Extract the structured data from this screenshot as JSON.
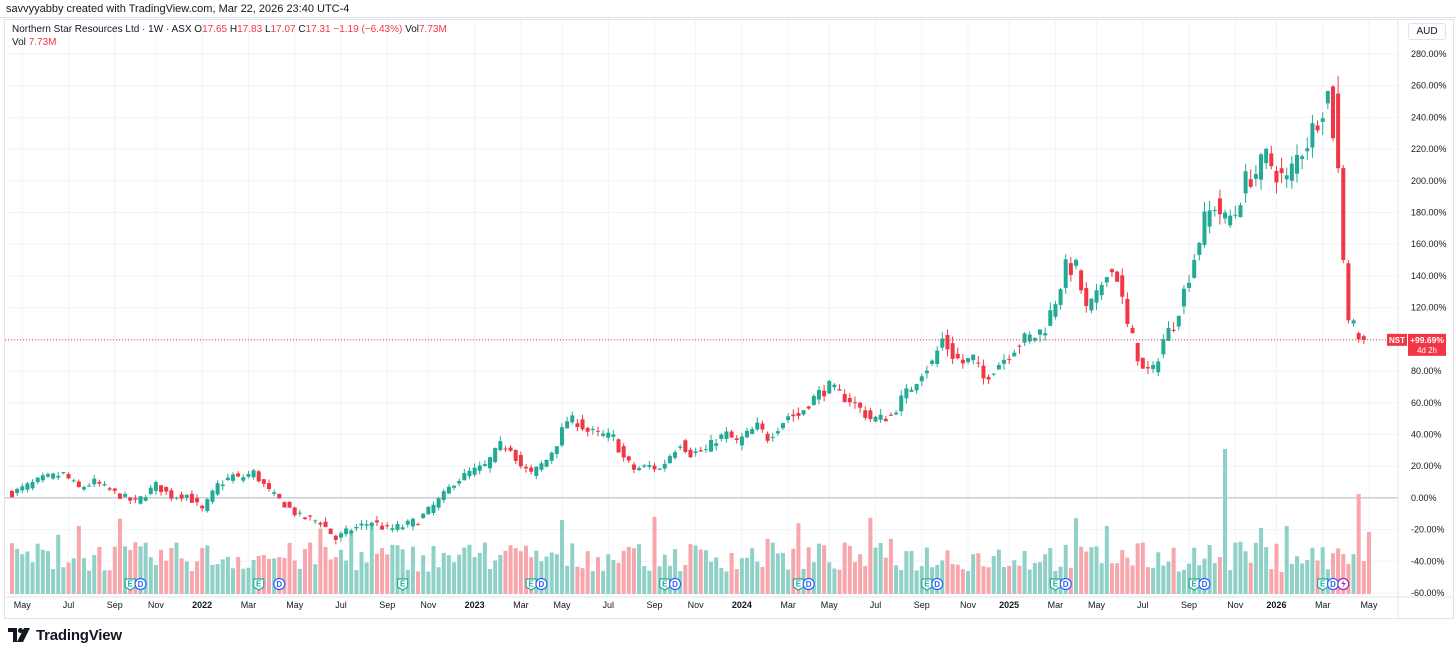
{
  "header": {
    "created_by": "savvyyabby created with TradingView.com, Mar 22, 2026 23:40 UTC-4"
  },
  "legend": {
    "symbol": "Northern Star Resources Ltd · 1W · ASX",
    "o_label": "O",
    "o": "17.65",
    "h_label": "H",
    "h": "17.83",
    "l_label": "L",
    "l": "17.07",
    "c_label": "C",
    "c": "17.31",
    "change": "−1.19 (−6.43%)",
    "vol_label": "Vol",
    "vol": "7.73M",
    "vol_row_label": "Vol",
    "vol_row": "7.73M"
  },
  "currency": "AUD",
  "price_tag": {
    "ticker": "NST",
    "value": "+99.69%",
    "countdown": "4d 2h"
  },
  "colors": {
    "up": "#22ab94",
    "down": "#f23645",
    "up_vol": "#8fd1c6",
    "down_vol": "#f7a6ac",
    "grid": "#f0f3fa",
    "zero": "#b2b5be"
  },
  "brand": "TradingView",
  "chart_data": {
    "type": "candlestick",
    "title": "Northern Star Resources Ltd · 1W · ASX",
    "yaxis_unit": "percent change",
    "ylim": [
      -60,
      280
    ],
    "y_ticks": [
      "280.00%",
      "260.00%",
      "240.00%",
      "220.00%",
      "200.00%",
      "180.00%",
      "160.00%",
      "140.00%",
      "120.00%",
      "100.00%",
      "80.00%",
      "60.00%",
      "40.00%",
      "20.00%",
      "0.00%",
      "-20.00%",
      "-40.00%",
      "-60.00%"
    ],
    "x_ticks": [
      "May",
      "Jul",
      "Sep",
      "Nov",
      "2022",
      "Mar",
      "May",
      "Jul",
      "Sep",
      "Nov",
      "2023",
      "Mar",
      "May",
      "Jul",
      "Sep",
      "Nov",
      "2024",
      "Mar",
      "May",
      "Jul",
      "Sep",
      "Nov",
      "2025",
      "Mar",
      "May",
      "Jul",
      "Sep",
      "Nov",
      "2026",
      "Mar",
      "May"
    ],
    "x_tick_index": [
      2,
      11,
      20,
      28,
      37,
      46,
      55,
      64,
      73,
      81,
      90,
      99,
      107,
      116,
      125,
      133,
      142,
      151,
      159,
      168,
      177,
      186,
      194,
      203,
      211,
      220,
      229,
      238,
      246,
      255,
      264
    ],
    "bold_ticks": [
      "2022",
      "2023",
      "2024",
      "2025",
      "2026"
    ],
    "last_value": 99.69,
    "close_path": [
      [
        0,
        3
      ],
      [
        6,
        12
      ],
      [
        10,
        15
      ],
      [
        13,
        6
      ],
      [
        16,
        10
      ],
      [
        20,
        3
      ],
      [
        24,
        -3
      ],
      [
        28,
        8
      ],
      [
        31,
        1
      ],
      [
        34,
        2
      ],
      [
        37,
        -8
      ],
      [
        40,
        8
      ],
      [
        43,
        14
      ],
      [
        44,
        12
      ],
      [
        47,
        16
      ],
      [
        50,
        4
      ],
      [
        53,
        -4
      ],
      [
        56,
        -12
      ],
      [
        60,
        -15
      ],
      [
        63,
        -26
      ],
      [
        66,
        -20
      ],
      [
        70,
        -15
      ],
      [
        73,
        -20
      ],
      [
        76,
        -18
      ],
      [
        79,
        -14
      ],
      [
        82,
        -5
      ],
      [
        84,
        2
      ],
      [
        86,
        10
      ],
      [
        89,
        16
      ],
      [
        92,
        20
      ],
      [
        95,
        33
      ],
      [
        97,
        32
      ],
      [
        99,
        20
      ],
      [
        101,
        15
      ],
      [
        104,
        24
      ],
      [
        106,
        35
      ],
      [
        108,
        49
      ],
      [
        110,
        48
      ],
      [
        112,
        42
      ],
      [
        114,
        40
      ],
      [
        117,
        38
      ],
      [
        119,
        25
      ],
      [
        121,
        18
      ],
      [
        124,
        20
      ],
      [
        126,
        18
      ],
      [
        128,
        27
      ],
      [
        130,
        35
      ],
      [
        132,
        28
      ],
      [
        135,
        30
      ],
      [
        137,
        37
      ],
      [
        139,
        40
      ],
      [
        141,
        35
      ],
      [
        143,
        40
      ],
      [
        145,
        45
      ],
      [
        147,
        38
      ],
      [
        149,
        45
      ],
      [
        151,
        52
      ],
      [
        153,
        52
      ],
      [
        155,
        60
      ],
      [
        157,
        66
      ],
      [
        159,
        70
      ],
      [
        161,
        65
      ],
      [
        163,
        62
      ],
      [
        165,
        56
      ],
      [
        167,
        50
      ],
      [
        169,
        50
      ],
      [
        171,
        52
      ],
      [
        173,
        62
      ],
      [
        175,
        70
      ],
      [
        177,
        80
      ],
      [
        179,
        85
      ],
      [
        181,
        100
      ],
      [
        183,
        90
      ],
      [
        185,
        85
      ],
      [
        187,
        88
      ],
      [
        189,
        75
      ],
      [
        191,
        82
      ],
      [
        193,
        88
      ],
      [
        195,
        95
      ],
      [
        197,
        100
      ],
      [
        199,
        102
      ],
      [
        201,
        108
      ],
      [
        203,
        125
      ],
      [
        205,
        145
      ],
      [
        207,
        145
      ],
      [
        209,
        118
      ],
      [
        211,
        126
      ],
      [
        213,
        145
      ],
      [
        215,
        140
      ],
      [
        217,
        108
      ],
      [
        218,
        100
      ],
      [
        220,
        80
      ],
      [
        222,
        80
      ],
      [
        224,
        100
      ],
      [
        226,
        110
      ],
      [
        228,
        130
      ],
      [
        230,
        152
      ],
      [
        232,
        175
      ],
      [
        234,
        185
      ],
      [
        236,
        175
      ],
      [
        238,
        180
      ],
      [
        240,
        200
      ],
      [
        242,
        205
      ],
      [
        244,
        215
      ],
      [
        246,
        205
      ],
      [
        248,
        200
      ],
      [
        250,
        215
      ],
      [
        252,
        225
      ],
      [
        254,
        240
      ],
      [
        256,
        255
      ],
      [
        258,
        208
      ],
      [
        259,
        150
      ],
      [
        260,
        118
      ],
      [
        261,
        110
      ],
      [
        262,
        103
      ],
      [
        264,
        100
      ]
    ],
    "earnings_markers": [
      {
        "index": 23,
        "type": "E"
      },
      {
        "index": 25,
        "type": "D"
      },
      {
        "index": 48,
        "type": "E"
      },
      {
        "index": 52,
        "type": "D"
      },
      {
        "index": 76,
        "type": "E"
      },
      {
        "index": 101,
        "type": "E"
      },
      {
        "index": 103,
        "type": "D"
      },
      {
        "index": 127,
        "type": "E"
      },
      {
        "index": 129,
        "type": "D"
      },
      {
        "index": 153,
        "type": "E"
      },
      {
        "index": 155,
        "type": "D"
      },
      {
        "index": 178,
        "type": "E"
      },
      {
        "index": 180,
        "type": "D"
      },
      {
        "index": 203,
        "type": "E"
      },
      {
        "index": 205,
        "type": "D"
      },
      {
        "index": 230,
        "type": "E"
      },
      {
        "index": 232,
        "type": "D"
      },
      {
        "index": 255,
        "type": "E"
      },
      {
        "index": 257,
        "type": "D"
      },
      {
        "index": 259,
        "type": "S"
      }
    ]
  }
}
